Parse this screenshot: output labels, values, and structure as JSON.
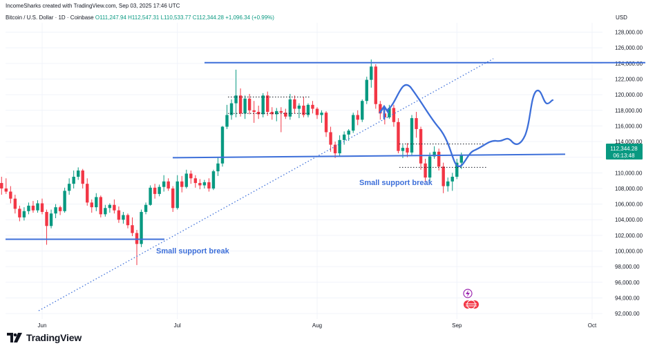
{
  "header": {
    "credit": "IncomeSharks created with TradingView.com, Sep 03, 2025 17:46 UTC"
  },
  "symbol_bar": {
    "title": "Bitcoin / U.S. Dollar · 1D · Coinbase",
    "open": "O111,247.94",
    "high": "H112,547.31",
    "low": "L110,533.77",
    "close": "C112,344.28",
    "change": "+1,096.34 (+0.99%)"
  },
  "currency": "USD",
  "last_price": {
    "value": "112,344.28",
    "countdown": "06:13:48"
  },
  "footer": {
    "brand": "TradingView"
  },
  "colors": {
    "up": "#089981",
    "down": "#F23645",
    "annotation": "#3D6FD9",
    "grid": "#F0F3FA",
    "axis_text": "#131722"
  },
  "annotations": {
    "left_label": "Small support break",
    "right_label": "Small support break"
  },
  "chart_data": {
    "type": "candlestick",
    "x_ticks": [
      "Jun",
      "Jul",
      "Aug",
      "Sep",
      "Oct"
    ],
    "y_ticks": [
      92000,
      94000,
      96000,
      98000,
      100000,
      102000,
      104000,
      106000,
      108000,
      110000,
      112000,
      114000,
      116000,
      118000,
      120000,
      122000,
      124000,
      126000,
      128000
    ],
    "y_tick_labels": [
      "92,000.00",
      "94,000.00",
      "96,000.00",
      "98,000.00",
      "100,000.00",
      "102,000.00",
      "104,000.00",
      "106,000.00",
      "108,000.00",
      "110,000.00",
      "112,000.00",
      "114,000.00",
      "116,000.00",
      "118,000.00",
      "120,000.00",
      "122,000.00",
      "124,000.00",
      "126,000.00",
      "128,000.00"
    ],
    "ylim": [
      91500,
      129000
    ],
    "grid": true,
    "start_date": "2025-05-20",
    "candles": [
      [
        106600,
        107200,
        105800,
        106300
      ],
      [
        106300,
        106500,
        104200,
        104800
      ],
      [
        104800,
        109000,
        104600,
        108700
      ],
      [
        108700,
        109500,
        107200,
        108000
      ],
      [
        108000,
        109300,
        107300,
        107600
      ],
      [
        107600,
        108300,
        106100,
        106700
      ],
      [
        106700,
        107200,
        104800,
        105400
      ],
      [
        105400,
        105800,
        103800,
        104300
      ],
      [
        104300,
        105600,
        103900,
        105100
      ],
      [
        105100,
        106200,
        104700,
        105800
      ],
      [
        105800,
        106400,
        104900,
        105200
      ],
      [
        105200,
        106500,
        104900,
        106100
      ],
      [
        106100,
        106700,
        104700,
        105000
      ],
      [
        105000,
        105300,
        100800,
        103200
      ],
      [
        103200,
        105300,
        102900,
        104800
      ],
      [
        104800,
        106000,
        104200,
        105600
      ],
      [
        105600,
        105800,
        104600,
        105100
      ],
      [
        105100,
        108100,
        104900,
        107700
      ],
      [
        107700,
        109300,
        107200,
        108600
      ],
      [
        108600,
        110300,
        108000,
        109500
      ],
      [
        109500,
        110700,
        109100,
        110300
      ],
      [
        110300,
        110500,
        108000,
        108600
      ],
      [
        108600,
        109300,
        105800,
        106200
      ],
      [
        106200,
        106600,
        104900,
        105600
      ],
      [
        105600,
        107400,
        105100,
        106900
      ],
      [
        106900,
        107100,
        104300,
        104700
      ],
      [
        104700,
        105900,
        104400,
        105500
      ],
      [
        105500,
        106100,
        104900,
        105900
      ],
      [
        105900,
        106600,
        104800,
        105200
      ],
      [
        105200,
        105700,
        103600,
        104000
      ],
      [
        104000,
        105000,
        103500,
        104600
      ],
      [
        104600,
        104800,
        102900,
        103300
      ],
      [
        103300,
        104300,
        101900,
        102300
      ],
      [
        102300,
        102700,
        98200,
        100900
      ],
      [
        100900,
        105300,
        100500,
        105000
      ],
      [
        105000,
        106200,
        104700,
        105900
      ],
      [
        105900,
        108400,
        105800,
        108100
      ],
      [
        108100,
        108600,
        106700,
        107300
      ],
      [
        107300,
        108500,
        107000,
        108200
      ],
      [
        108200,
        109700,
        107600,
        108900
      ],
      [
        108900,
        109300,
        107700,
        108000
      ],
      [
        108000,
        108300,
        105000,
        105500
      ],
      [
        105500,
        109700,
        105300,
        108900
      ],
      [
        108900,
        109600,
        107500,
        108200
      ],
      [
        108200,
        110400,
        108000,
        109900
      ],
      [
        109900,
        110300,
        108600,
        109300
      ],
      [
        109300,
        109700,
        108100,
        108700
      ],
      [
        108700,
        109200,
        107900,
        108400
      ],
      [
        108400,
        109100,
        108000,
        108800
      ],
      [
        108800,
        109300,
        107600,
        108000
      ],
      [
        108000,
        110400,
        107800,
        110200
      ],
      [
        110200,
        112000,
        109600,
        111200
      ],
      [
        111200,
        116000,
        110800,
        115900
      ],
      [
        115900,
        118700,
        115600,
        117400
      ],
      [
        117400,
        119400,
        116800,
        118900
      ],
      [
        118900,
        123200,
        117100,
        119900
      ],
      [
        119900,
        120800,
        117200,
        117600
      ],
      [
        117600,
        119900,
        116900,
        119500
      ],
      [
        119500,
        120100,
        117500,
        118000
      ],
      [
        118000,
        119200,
        116400,
        117800
      ],
      [
        117800,
        118600,
        116900,
        117500
      ],
      [
        117500,
        120200,
        117100,
        119900
      ],
      [
        119900,
        120400,
        117300,
        117800
      ],
      [
        117800,
        118400,
        116800,
        117500
      ],
      [
        117500,
        118300,
        116600,
        117900
      ],
      [
        117900,
        118400,
        115200,
        117700
      ],
      [
        117700,
        118200,
        116900,
        117200
      ],
      [
        117200,
        120100,
        116800,
        119400
      ],
      [
        119400,
        119900,
        117600,
        118200
      ],
      [
        118200,
        118900,
        117000,
        118600
      ],
      [
        118600,
        119700,
        117100,
        117400
      ],
      [
        117400,
        118900,
        117100,
        118700
      ],
      [
        118700,
        119200,
        117600,
        118200
      ],
      [
        118200,
        118400,
        116900,
        117400
      ],
      [
        117400,
        118000,
        116400,
        117700
      ],
      [
        117700,
        117900,
        114600,
        115200
      ],
      [
        115200,
        115900,
        112700,
        113600
      ],
      [
        113600,
        114000,
        111900,
        112500
      ],
      [
        112500,
        114800,
        112100,
        114200
      ],
      [
        114200,
        115300,
        113600,
        114900
      ],
      [
        114900,
        115600,
        114100,
        115400
      ],
      [
        115400,
        117700,
        115100,
        117400
      ],
      [
        117400,
        118000,
        116100,
        116800
      ],
      [
        116800,
        119400,
        116500,
        119200
      ],
      [
        119200,
        122300,
        118800,
        121900
      ],
      [
        121900,
        124500,
        120900,
        123600
      ],
      [
        123600,
        123900,
        118200,
        118800
      ],
      [
        118800,
        119200,
        116800,
        117600
      ],
      [
        117600,
        118400,
        116200,
        117100
      ],
      [
        117100,
        118700,
        116900,
        118300
      ],
      [
        118300,
        118700,
        115900,
        116500
      ],
      [
        116500,
        117000,
        112500,
        112800
      ],
      [
        112800,
        113600,
        111900,
        113200
      ],
      [
        113200,
        113800,
        112000,
        112600
      ],
      [
        112600,
        117400,
        112300,
        117000
      ],
      [
        117000,
        117800,
        114500,
        115600
      ],
      [
        115600,
        115900,
        110400,
        111200
      ],
      [
        111200,
        111800,
        108800,
        109400
      ],
      [
        109400,
        112600,
        108900,
        112100
      ],
      [
        112100,
        113400,
        111800,
        112700
      ],
      [
        112700,
        113100,
        110300,
        110800
      ],
      [
        110800,
        111300,
        107400,
        108300
      ],
      [
        108300,
        109400,
        107600,
        108900
      ],
      [
        108900,
        110000,
        107700,
        109500
      ],
      [
        109500,
        111800,
        109200,
        111300
      ],
      [
        111300,
        112600,
        110500,
        112300
      ]
    ],
    "levels": [
      {
        "type": "support",
        "value": 101500
      },
      {
        "type": "support",
        "value": 112200
      },
      {
        "type": "resistance",
        "value": 124100
      }
    ]
  }
}
